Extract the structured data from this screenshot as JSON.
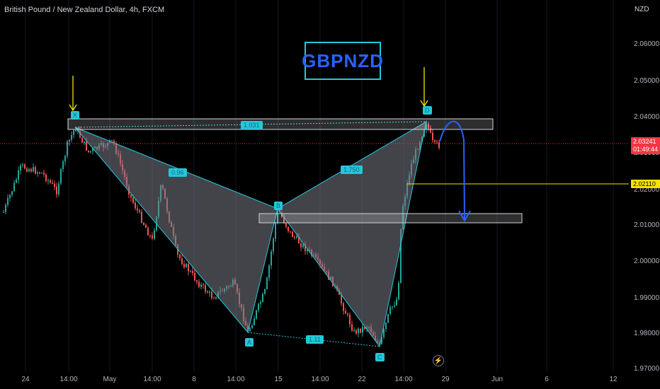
{
  "header": {
    "symbol_title": "British Pound / New Zealand Dollar, 4h, FXCM",
    "currency": "NZD"
  },
  "ticker_label": "GBPNZD",
  "price_axis": {
    "ticks": [
      "2.06000",
      "2.05000",
      "2.04000",
      "2.03000",
      "2.02000",
      "2.01000",
      "2.00000",
      "1.99000",
      "1.98000",
      "1.97000"
    ],
    "current_price": "2.03241",
    "countdown": "01:49:44",
    "horizontal_line_price": "2.02110"
  },
  "time_axis": {
    "ticks": [
      "24",
      "14:00",
      "May",
      "14:00",
      "8",
      "14:00",
      "15",
      "14:00",
      "22",
      "14:00",
      "29",
      "Jun",
      "6",
      "12"
    ]
  },
  "pattern": {
    "points": [
      "X",
      "A",
      "B",
      "C",
      "D"
    ],
    "ratios": {
      "xb": "0.96",
      "ac": "1.11",
      "bd": "1.750",
      "xd": "1.031"
    }
  },
  "colors": {
    "background": "#000000",
    "bull": "#26a69a",
    "bear": "#ef5350",
    "pattern": "#26c6da",
    "projection": "#2962ff",
    "marker_arrow": "#f5e400"
  },
  "icons": {
    "events": "lightning-icon"
  }
}
